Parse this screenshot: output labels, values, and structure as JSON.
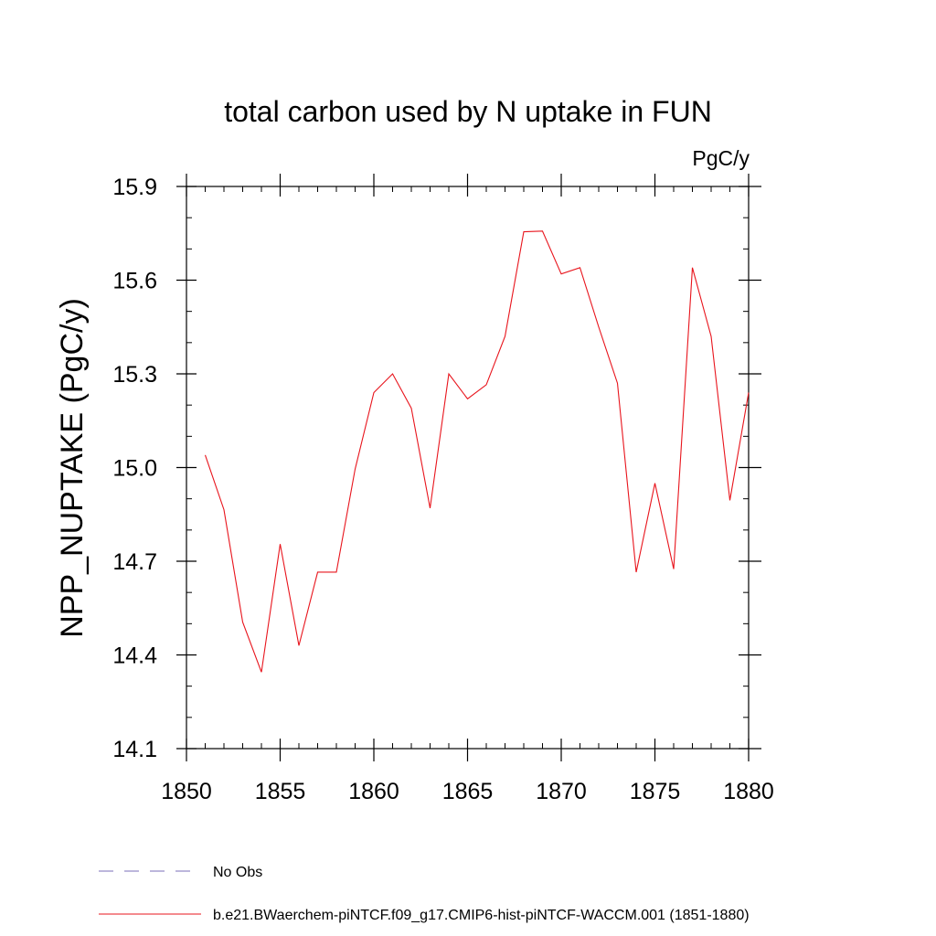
{
  "chart_data": {
    "type": "line",
    "title": "total carbon used by N uptake in FUN",
    "units": "PgC/y",
    "xlabel": "",
    "ylabel": "NPP_NUPTAKE  (PgC/y)",
    "xlim": [
      1850,
      1880
    ],
    "ylim": [
      14.1,
      15.9
    ],
    "x_ticks": [
      1850,
      1855,
      1860,
      1865,
      1870,
      1875,
      1880
    ],
    "x_tick_labels": [
      "1850",
      "1855",
      "1860",
      "1865",
      "1870",
      "1875",
      "1880"
    ],
    "y_ticks": [
      14.1,
      14.4,
      14.7,
      15.0,
      15.3,
      15.6,
      15.9
    ],
    "y_tick_labels": [
      "14.1",
      "14.4",
      "14.7",
      "15.0",
      "15.3",
      "15.6",
      "15.9"
    ],
    "grid": false,
    "legend_position": "bottom-left",
    "series": [
      {
        "name": "b.e21.BWaerchem-piNTCF.f09_g17.CMIP6-hist-piNTCF-WACCM.001 (1851-1880)",
        "color": "#e8141c",
        "style": "solid",
        "x": [
          1851,
          1852,
          1853,
          1854,
          1855,
          1856,
          1857,
          1858,
          1859,
          1860,
          1861,
          1862,
          1863,
          1864,
          1865,
          1866,
          1867,
          1868,
          1869,
          1870,
          1871,
          1872,
          1873,
          1874,
          1875,
          1876,
          1877,
          1878,
          1879,
          1880
        ],
        "values": [
          15.04,
          14.865,
          14.505,
          14.345,
          14.755,
          14.43,
          14.665,
          14.665,
          14.995,
          15.24,
          15.3,
          15.19,
          14.87,
          15.3,
          15.22,
          15.265,
          15.42,
          15.755,
          15.757,
          15.62,
          15.64,
          15.45,
          15.27,
          14.665,
          14.95,
          14.675,
          15.64,
          15.42,
          14.895,
          15.24
        ]
      }
    ],
    "legend": [
      {
        "label": "No Obs",
        "color": "#7b6fb8",
        "style": "dashed"
      },
      {
        "label": "b.e21.BWaerchem-piNTCF.f09_g17.CMIP6-hist-piNTCF-WACCM.001 (1851-1880)",
        "color": "#e8141c",
        "style": "solid"
      }
    ]
  }
}
